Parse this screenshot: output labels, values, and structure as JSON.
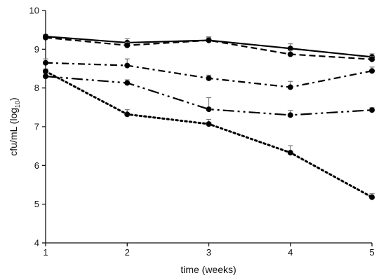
{
  "chart_data": {
    "type": "line",
    "xlabel": "time (weeks)",
    "ylabel": "cfu/mL (log10)",
    "ylabel_main": "cfu/mL (log",
    "ylabel_sub": "10",
    "ylabel_close": ")",
    "xlim": [
      1,
      5
    ],
    "ylim": [
      4,
      10
    ],
    "x": [
      1,
      2,
      3,
      4,
      5
    ],
    "x_tick_labels": [
      "1",
      "2",
      "3",
      "4",
      "5"
    ],
    "y_ticks": [
      4,
      5,
      6,
      7,
      8,
      9,
      10
    ],
    "y_tick_labels": [
      "4",
      "5",
      "6",
      "7",
      "8",
      "9",
      "10"
    ],
    "grid": false,
    "series": [
      {
        "style": "solid",
        "values": [
          9.33,
          9.17,
          9.23,
          9.02,
          8.8
        ],
        "err": [
          0.05,
          0.1,
          0.09,
          0.12,
          0.08
        ]
      },
      {
        "style": "dashed",
        "values": [
          9.3,
          9.1,
          9.23,
          8.87,
          8.74
        ],
        "err": [
          0.04,
          0.08,
          0.07,
          0.1,
          0.07
        ]
      },
      {
        "style": "dash-dot",
        "values": [
          8.65,
          8.58,
          8.25,
          8.02,
          8.44
        ],
        "err": [
          0.1,
          0.17,
          0.08,
          0.15,
          0.1
        ]
      },
      {
        "style": "dash-dot-dot",
        "values": [
          8.3,
          8.13,
          7.45,
          7.3,
          7.43
        ],
        "err": [
          0.08,
          0.08,
          0.3,
          0.12,
          0.06
        ]
      },
      {
        "style": "dotted",
        "values": [
          8.43,
          7.32,
          7.07,
          6.33,
          5.18
        ],
        "err": [
          0.06,
          0.12,
          0.12,
          0.18,
          0.09
        ]
      }
    ]
  }
}
